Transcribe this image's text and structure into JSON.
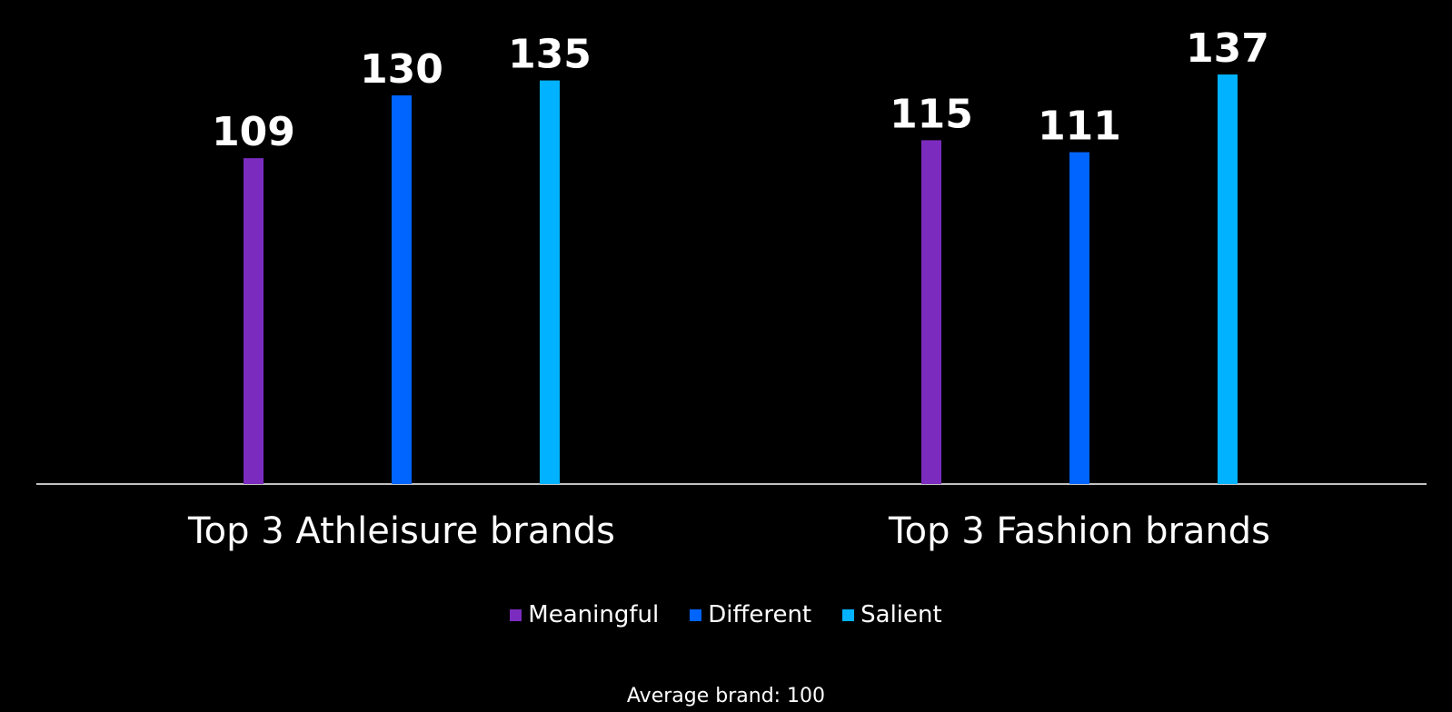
{
  "chart_data": {
    "type": "bar",
    "categories": [
      "Top 3 Athleisure brands",
      "Top 3 Fashion brands"
    ],
    "series": [
      {
        "name": "Meaningful",
        "color": "#7b2cbf",
        "values": [
          109,
          115
        ]
      },
      {
        "name": "Different",
        "color": "#0064ff",
        "values": [
          130,
          111
        ]
      },
      {
        "name": "Salient",
        "color": "#00b2ff",
        "values": [
          135,
          137
        ]
      }
    ],
    "ylim": [
      0,
      137
    ],
    "grid": false,
    "legend_placement": "bottom-center",
    "footnote": "Average brand: 100"
  }
}
